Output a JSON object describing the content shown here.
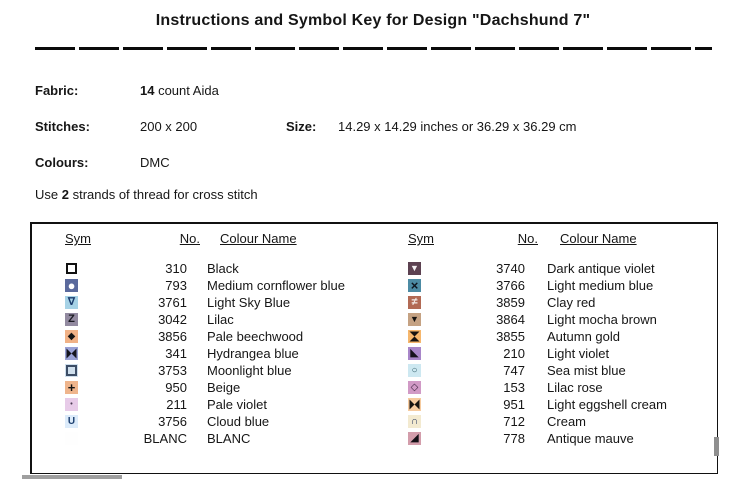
{
  "title": "Instructions and Symbol Key for Design \"Dachshund 7\"",
  "info": {
    "fabric_label": "Fabric:",
    "fabric_bold": "14",
    "fabric_rest": " count Aida",
    "stitches_label": "Stitches:",
    "stitches_value": "200 x 200",
    "size_label": "Size:",
    "size_value": "14.29 x 14.29 inches or 36.29 x 36.29 cm",
    "colours_label": "Colours:",
    "colours_value": "DMC",
    "strands_prefix": "Use ",
    "strands_bold": "2",
    "strands_suffix": " strands of thread for cross stitch"
  },
  "key_table": {
    "headers": {
      "sym": "Sym",
      "no": "No.",
      "name": "Colour Name"
    },
    "rows": [
      {
        "left": {
          "no": "310",
          "name": "Black",
          "sym": {
            "glyph": "",
            "shape": "square",
            "fg": "#111111",
            "bg": "#ffffff"
          }
        },
        "right": {
          "no": "3740",
          "name": "Dark antique violet",
          "sym": {
            "glyph": "▼",
            "shape": null,
            "fg": "#f5f0f2",
            "bg": "#5c4151"
          }
        }
      },
      {
        "left": {
          "no": "793",
          "name": "Medium cornflower blue",
          "sym": {
            "glyph": "●",
            "shape": null,
            "fg": "#ffffff",
            "bg": "#5b6a9d"
          }
        },
        "right": {
          "no": "3766",
          "name": "Light medium blue",
          "sym": {
            "glyph": "×",
            "shape": null,
            "fg": "#0e1620",
            "bg": "#4c8ba4"
          }
        }
      },
      {
        "left": {
          "no": "3761",
          "name": "Light Sky Blue",
          "sym": {
            "glyph": "∇",
            "shape": null,
            "fg": "#1b3c6e",
            "bg": "#a6d2e6"
          }
        },
        "right": {
          "no": "3859",
          "name": "Clay red",
          "sym": {
            "glyph": "≠",
            "shape": null,
            "fg": "#f2e8e4",
            "bg": "#b26a54"
          }
        }
      },
      {
        "left": {
          "no": "3042",
          "name": "Lilac",
          "sym": {
            "glyph": "Z",
            "shape": null,
            "fg": "#1a1a22",
            "bg": "#928aa0"
          }
        },
        "right": {
          "no": "3864",
          "name": "Light mocha brown",
          "sym": {
            "glyph": "▼",
            "shape": null,
            "fg": "#161311",
            "bg": "#c5a283"
          }
        }
      },
      {
        "left": {
          "no": "3856",
          "name": "Pale beechwood",
          "sym": {
            "glyph": "◆",
            "shape": null,
            "fg": "#141414",
            "bg": "#f1b287"
          }
        },
        "right": {
          "no": "3855",
          "name": "Autumn gold",
          "sym": {
            "glyph": "",
            "shape": "hourglass",
            "fg": "#171310",
            "bg": "#f6b76d"
          }
        }
      },
      {
        "left": {
          "no": "341",
          "name": "Hydrangea blue",
          "sym": {
            "glyph": "",
            "shape": "bowtie",
            "fg": "#15151f",
            "bg": "#99a1d6"
          }
        },
        "right": {
          "no": "210",
          "name": "Light violet",
          "sym": {
            "glyph": "◣",
            "shape": null,
            "fg": "#17121d",
            "bg": "#a886c9"
          }
        }
      },
      {
        "left": {
          "no": "3753",
          "name": "Moonlight blue",
          "sym": {
            "glyph": "",
            "shape": "square",
            "fg": "#3c4d66",
            "bg": "#cfdfed"
          }
        },
        "right": {
          "no": "747",
          "name": "Sea mist blue",
          "sym": {
            "glyph": "○",
            "shape": null,
            "fg": "#2d5a66",
            "bg": "#cde8f1"
          }
        }
      },
      {
        "left": {
          "no": "950",
          "name": "Beige",
          "sym": {
            "glyph": "+",
            "shape": null,
            "fg": "#141414",
            "bg": "#efb58c"
          }
        },
        "right": {
          "no": "153",
          "name": "Lilac rose",
          "sym": {
            "glyph": "◇",
            "shape": null,
            "fg": "#3c2340",
            "bg": "#d19ac6"
          }
        }
      },
      {
        "left": {
          "no": "211",
          "name": "Pale violet",
          "sym": {
            "glyph": "•",
            "shape": null,
            "fg": "#4a3a52",
            "bg": "#e7cbe8"
          }
        },
        "right": {
          "no": "951",
          "name": "Light eggshell cream",
          "sym": {
            "glyph": "",
            "shape": "bowtie",
            "fg": "#171310",
            "bg": "#f6cb9f"
          }
        }
      },
      {
        "left": {
          "no": "3756",
          "name": "Cloud blue",
          "sym": {
            "glyph": "U",
            "shape": null,
            "fg": "#1c3f70",
            "bg": "#dcebfa"
          }
        },
        "right": {
          "no": "712",
          "name": "Cream",
          "sym": {
            "glyph": "∩",
            "shape": null,
            "fg": "#24365e",
            "bg": "#f3ead0"
          }
        }
      },
      {
        "left": {
          "no": "BLANC",
          "name": "BLANC",
          "sym": {
            "glyph": "",
            "shape": null,
            "fg": "#ffffff",
            "bg": "#fefefe"
          }
        },
        "right": {
          "no": "778",
          "name": "Antique mauve",
          "sym": {
            "glyph": "◢",
            "shape": null,
            "fg": "#141016",
            "bg": "#d39dab"
          }
        }
      }
    ]
  }
}
